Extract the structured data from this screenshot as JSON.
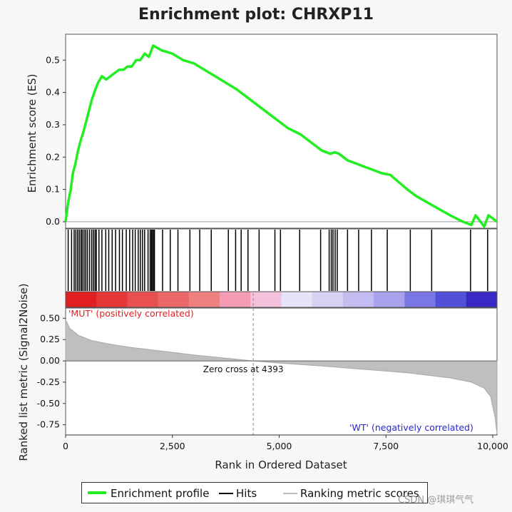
{
  "title": "Enrichment plot: CHRXP11",
  "chart_data": {
    "type": "line",
    "title": "Enrichment plot: CHRXP11",
    "xlabel": "Rank in Ordered Dataset",
    "xlim": [
      0,
      10100
    ],
    "x_ticks": [
      0,
      2500,
      5000,
      7500,
      10000
    ],
    "x_tick_labels": [
      "0",
      "2,500",
      "5,000",
      "7,500",
      "10,000"
    ],
    "es_panel": {
      "ylabel": "Enrichment score (ES)",
      "ylim": [
        -0.02,
        0.58
      ],
      "y_ticks": [
        0.0,
        0.1,
        0.2,
        0.3,
        0.4,
        0.5
      ],
      "y_tick_labels": [
        "0.0",
        "0.1",
        "0.2",
        "0.3",
        "0.4",
        "0.5"
      ],
      "color": "#22ee22",
      "series_name": "Enrichment profile",
      "x": [
        0,
        60,
        120,
        170,
        230,
        290,
        350,
        420,
        480,
        560,
        620,
        700,
        760,
        850,
        950,
        1050,
        1150,
        1250,
        1350,
        1450,
        1550,
        1650,
        1750,
        1850,
        1950,
        2050,
        2250,
        2500,
        2750,
        3000,
        3250,
        3500,
        3750,
        4000,
        4300,
        4600,
        4900,
        5200,
        5500,
        5800,
        6000,
        6200,
        6300,
        6400,
        6600,
        6800,
        7000,
        7200,
        7400,
        7600,
        8000,
        8200,
        8600,
        9000,
        9300,
        9500,
        9600,
        9800,
        9900,
        10100
      ],
      "y": [
        0.0,
        0.06,
        0.1,
        0.15,
        0.18,
        0.22,
        0.25,
        0.28,
        0.31,
        0.35,
        0.38,
        0.41,
        0.43,
        0.45,
        0.44,
        0.45,
        0.46,
        0.47,
        0.47,
        0.48,
        0.48,
        0.5,
        0.5,
        0.52,
        0.51,
        0.545,
        0.53,
        0.52,
        0.5,
        0.49,
        0.47,
        0.45,
        0.43,
        0.41,
        0.38,
        0.35,
        0.32,
        0.29,
        0.27,
        0.24,
        0.22,
        0.21,
        0.215,
        0.21,
        0.19,
        0.18,
        0.17,
        0.16,
        0.15,
        0.145,
        0.1,
        0.08,
        0.05,
        0.02,
        0.0,
        -0.01,
        0.02,
        -0.015,
        0.02,
        0.0
      ]
    },
    "hits": {
      "series_name": "Hits",
      "color": "#000000",
      "positions": [
        60,
        140,
        200,
        240,
        280,
        320,
        360,
        390,
        430,
        470,
        510,
        560,
        610,
        650,
        690,
        720,
        780,
        850,
        940,
        1010,
        1090,
        1170,
        1260,
        1330,
        1420,
        1500,
        1570,
        1630,
        1700,
        1750,
        1800,
        1850,
        1930,
        1980,
        2010,
        2030,
        2060,
        2080,
        2270,
        2450,
        2630,
        2910,
        3140,
        3410,
        3810,
        3980,
        4110,
        4270,
        4530,
        4900,
        5030,
        5480,
        5970,
        6170,
        6220,
        6260,
        6310,
        6360,
        6600,
        6860,
        7160,
        7530,
        8070,
        8570,
        9480,
        9880
      ]
    },
    "color_bar": {
      "colors": [
        "#e02020",
        "#e43838",
        "#e85050",
        "#ec6868",
        "#ef8080",
        "#f59cb4",
        "#f5c0dc",
        "#e6e2f8",
        "#d6d2f4",
        "#c2bcf0",
        "#a8a2ee",
        "#7a76e4",
        "#5250d8",
        "#3a28c4"
      ]
    },
    "metric_panel": {
      "ylabel": "Ranked list metric (Signal2Noise)",
      "series_name": "Ranking metric scores",
      "ylim": [
        -0.87,
        0.62
      ],
      "y_ticks": [
        0.5,
        0.25,
        0.0,
        -0.25,
        -0.5,
        -0.75
      ],
      "y_tick_labels": [
        "0.50",
        "0.25",
        "0.00",
        "-0.25",
        "-0.50",
        "-0.75"
      ],
      "color": "#bfbfbf",
      "x": [
        0,
        100,
        300,
        600,
        1000,
        1500,
        2000,
        2500,
        3000,
        3500,
        4000,
        4393,
        5000,
        6000,
        7000,
        8000,
        9000,
        9500,
        9800,
        9950,
        10050,
        10100
      ],
      "y": [
        0.48,
        0.38,
        0.3,
        0.24,
        0.2,
        0.16,
        0.13,
        0.1,
        0.07,
        0.045,
        0.02,
        0.0,
        -0.025,
        -0.06,
        -0.1,
        -0.14,
        -0.2,
        -0.25,
        -0.32,
        -0.42,
        -0.65,
        -0.85
      ],
      "zero_cross_label": "Zero cross at 4393",
      "zero_cross": 4393,
      "positive_label": "'MUT' (positively correlated)",
      "negative_label": "'WT' (negatively correlated)",
      "positive_color": "#dd2222",
      "negative_color": "#2a24d0"
    }
  },
  "legend": {
    "enrichment": "Enrichment profile",
    "hits": "Hits",
    "ranking": "Ranking metric scores"
  },
  "watermark": "CSDN @琪琪气气"
}
